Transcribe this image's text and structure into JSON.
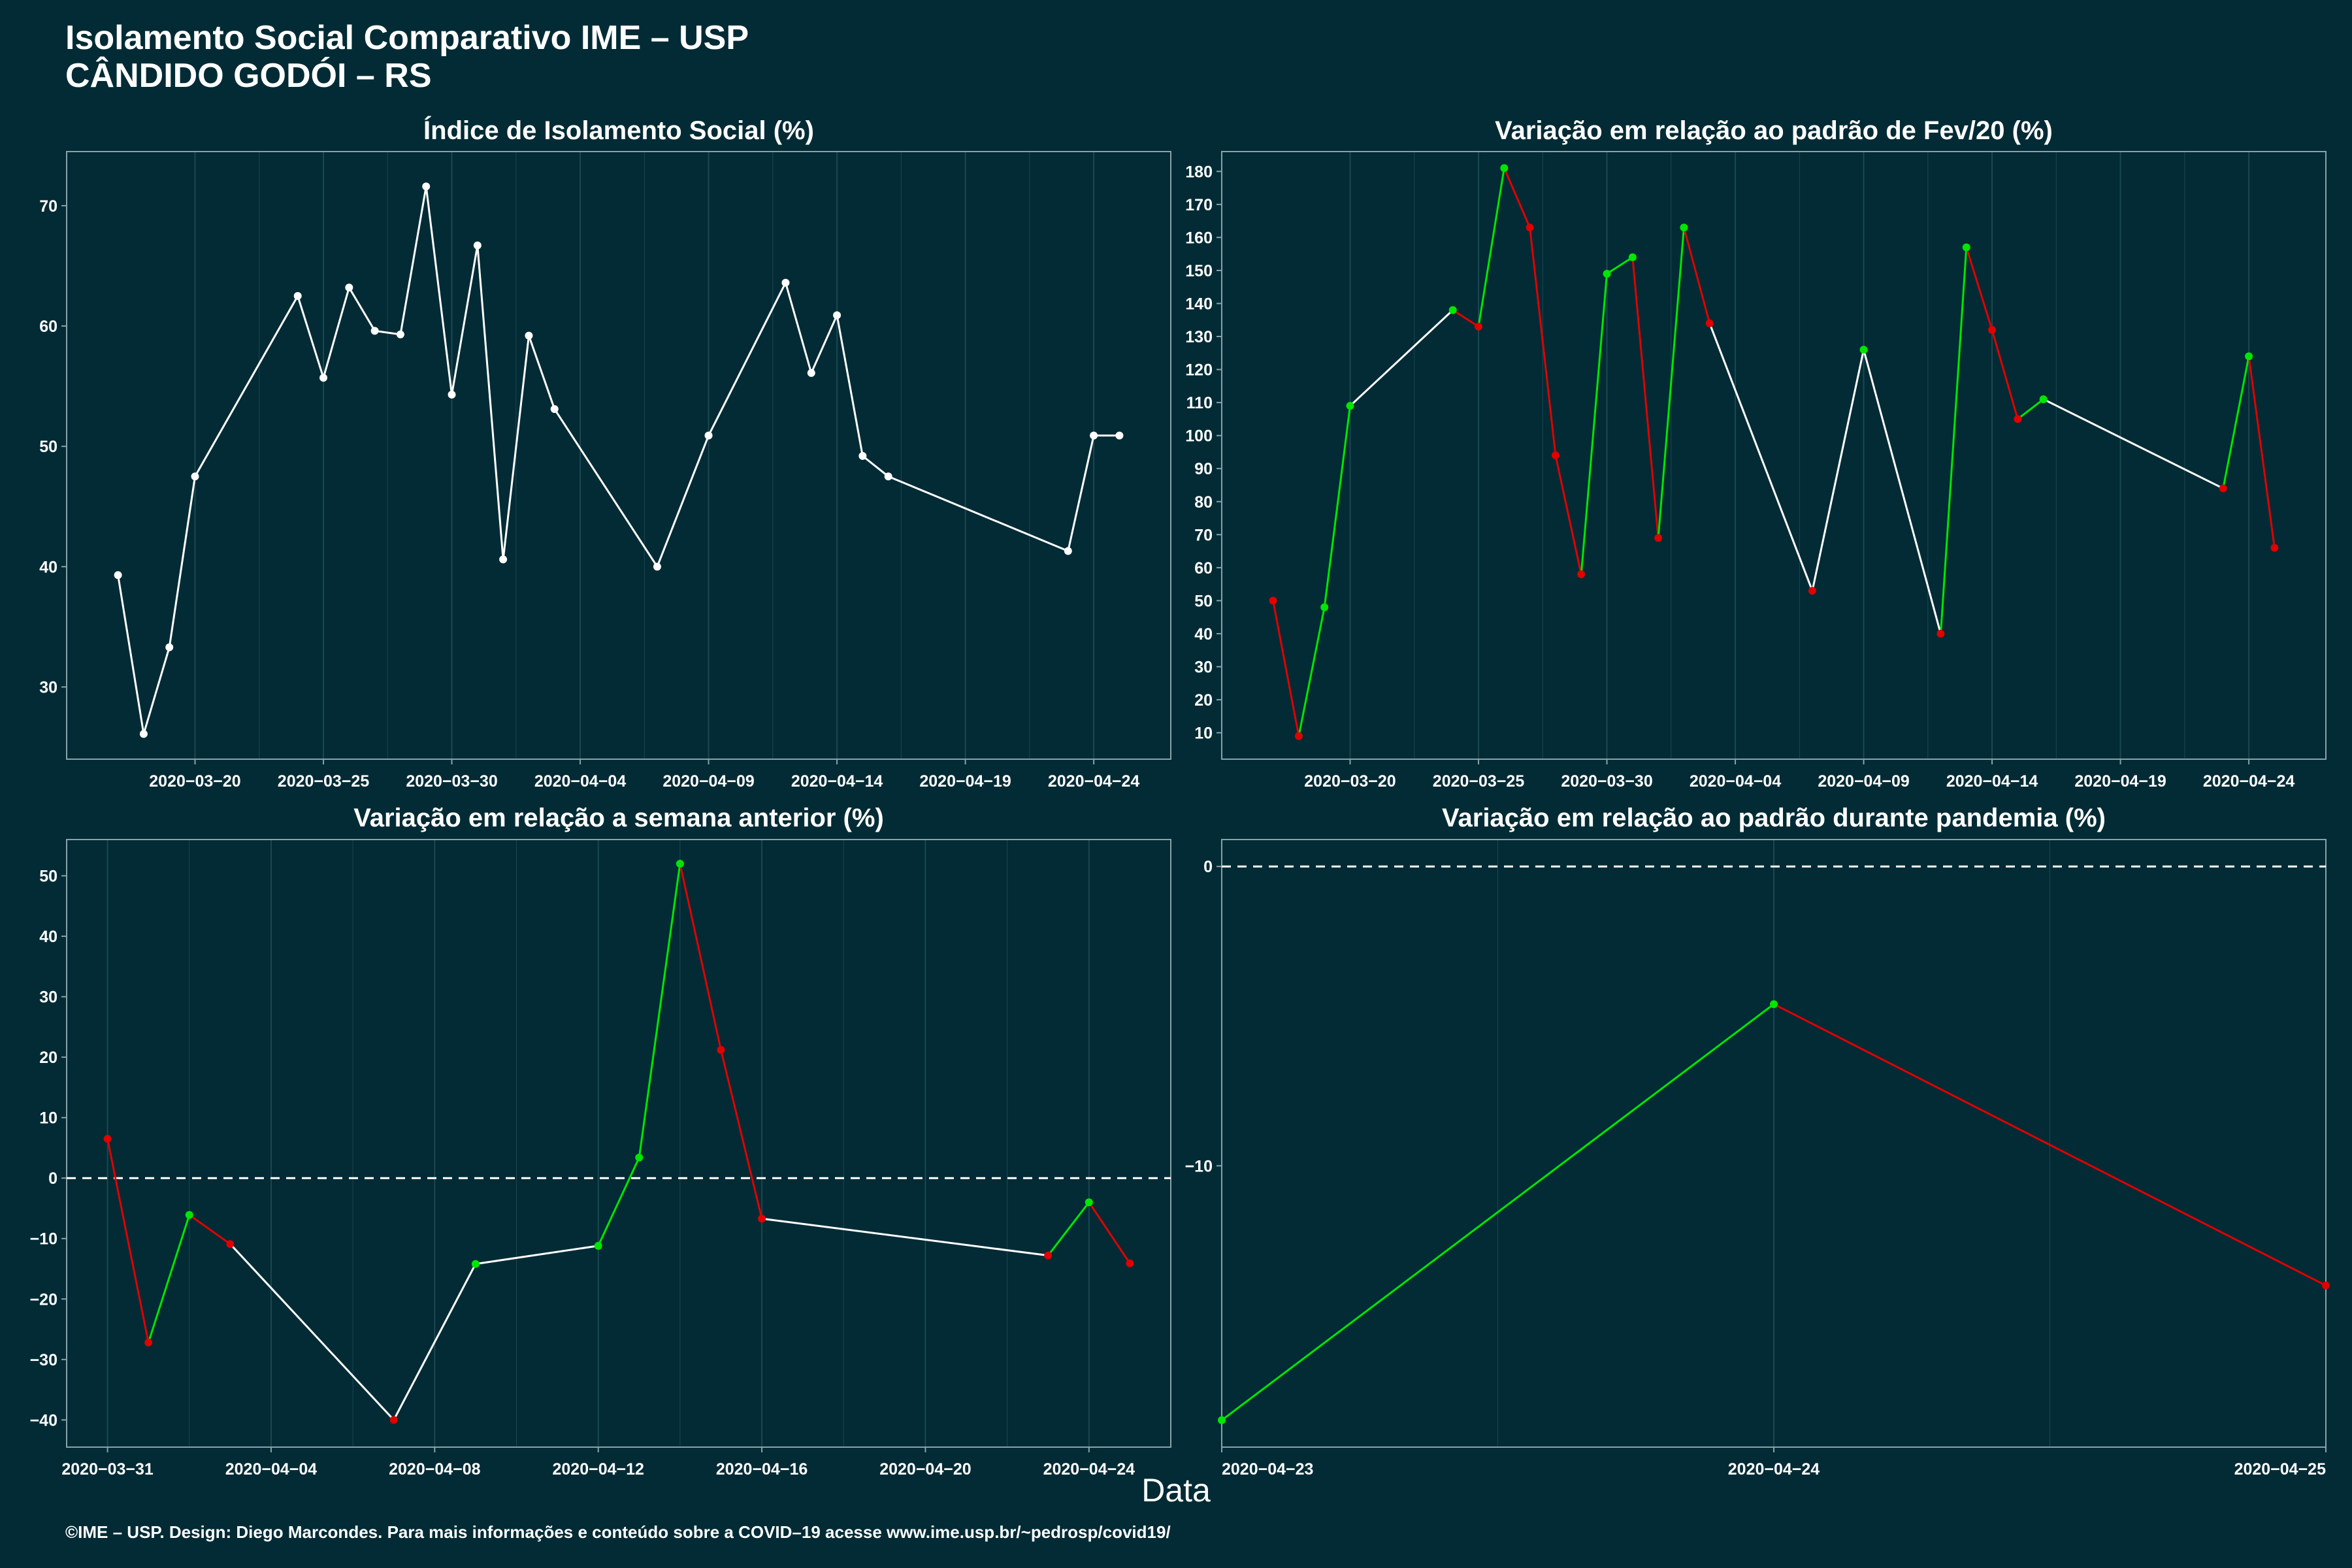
{
  "header": {
    "title_line1": "Isolamento Social Comparativo IME – USP",
    "title_line2": "CÂNDIDO GODÓI – RS"
  },
  "x_axis_caption": "Data",
  "credit": "©IME – USP. Design: Diego Marcondes. Para mais informações e conteúdo sobre a COVID–19 acesse www.ime.usp.br/~pedrosp/covid19/",
  "colors": {
    "background": "#022b35",
    "line": "#ffffff",
    "up": "#00e600",
    "down": "#e00000",
    "grid": "#1c4850"
  },
  "chart_data": [
    {
      "id": "isolamento",
      "title": "Índice de Isolamento Social (%)",
      "type": "line",
      "color_mode": "white",
      "xlim": [
        "2020-03-15",
        "2020-04-27"
      ],
      "ylim": [
        24,
        74.5
      ],
      "yticks": [
        30,
        40,
        50,
        60,
        70
      ],
      "xticks": [
        "2020-03-20",
        "2020-03-25",
        "2020-03-30",
        "2020-04-04",
        "2020-04-09",
        "2020-04-14",
        "2020-04-19",
        "2020-04-24"
      ],
      "x": [
        "2020-03-17",
        "2020-03-18",
        "2020-03-19",
        "2020-03-20",
        "2020-03-24",
        "2020-03-25",
        "2020-03-26",
        "2020-03-27",
        "2020-03-28",
        "2020-03-29",
        "2020-03-30",
        "2020-03-31",
        "2020-04-01",
        "2020-04-02",
        "2020-04-03",
        "2020-04-07",
        "2020-04-09",
        "2020-04-12",
        "2020-04-13",
        "2020-04-14",
        "2020-04-15",
        "2020-04-16",
        "2020-04-23",
        "2020-04-24",
        "2020-04-25"
      ],
      "y": [
        39.3,
        26.1,
        33.3,
        47.5,
        62.5,
        55.7,
        63.2,
        59.6,
        59.3,
        71.6,
        54.3,
        66.7,
        40.6,
        59.2,
        53.1,
        40.0,
        50.9,
        63.6,
        56.1,
        60.9,
        49.2,
        47.5,
        41.3,
        50.9,
        50.9
      ]
    },
    {
      "id": "fev20",
      "title": "Variação em relação ao padrão de Fev/20 (%)",
      "type": "line",
      "color_mode": "alternating",
      "xlim": [
        "2020-03-15",
        "2020-04-27"
      ],
      "ylim": [
        2,
        186
      ],
      "yticks": [
        10,
        20,
        30,
        40,
        50,
        60,
        70,
        80,
        90,
        100,
        110,
        120,
        130,
        140,
        150,
        160,
        170,
        180
      ],
      "xticks": [
        "2020-03-20",
        "2020-03-25",
        "2020-03-30",
        "2020-04-04",
        "2020-04-09",
        "2020-04-14",
        "2020-04-19",
        "2020-04-24"
      ],
      "x": [
        "2020-03-17",
        "2020-03-18",
        "2020-03-19",
        "2020-03-20",
        "2020-03-24",
        "2020-03-25",
        "2020-03-26",
        "2020-03-27",
        "2020-03-28",
        "2020-03-29",
        "2020-03-30",
        "2020-03-31",
        "2020-04-01",
        "2020-04-02",
        "2020-04-03",
        "2020-04-07",
        "2020-04-09",
        "2020-04-12",
        "2020-04-13",
        "2020-04-14",
        "2020-04-15",
        "2020-04-16",
        "2020-04-23",
        "2020-04-24",
        "2020-04-25"
      ],
      "y": [
        50,
        9,
        48,
        109,
        138,
        133,
        181,
        163,
        94,
        58,
        149,
        154,
        69,
        163,
        134,
        53,
        126,
        40,
        157,
        132,
        105,
        111,
        84,
        124,
        66
      ]
    },
    {
      "id": "semana",
      "title": "Variação em relação a semana anterior (%)",
      "type": "line",
      "color_mode": "alternating",
      "xlim": [
        "2020-03-30",
        "2020-04-26"
      ],
      "ylim": [
        -44.5,
        56
      ],
      "yticks": [
        -40,
        -30,
        -20,
        -10,
        0,
        10,
        20,
        30,
        40,
        50
      ],
      "xticks": [
        "2020-03-31",
        "2020-04-04",
        "2020-04-08",
        "2020-04-12",
        "2020-04-16",
        "2020-04-20",
        "2020-04-24"
      ],
      "reference_line": 0,
      "x": [
        "2020-03-31",
        "2020-04-01",
        "2020-04-02",
        "2020-04-03",
        "2020-04-07",
        "2020-04-09",
        "2020-04-12",
        "2020-04-13",
        "2020-04-14",
        "2020-04-15",
        "2020-04-16",
        "2020-04-23",
        "2020-04-24",
        "2020-04-25"
      ],
      "y": [
        6.5,
        -27.2,
        -6.1,
        -10.9,
        -40.0,
        -14.2,
        -11.2,
        3.4,
        52.0,
        21.2,
        -6.7,
        -12.8,
        -4.0,
        -14.1
      ]
    },
    {
      "id": "pandemia",
      "title": "Variação em relação ao padrão durante pandemia (%)",
      "type": "line",
      "color_mode": "alternating",
      "xlim": [
        "2020-04-23",
        "2020-04-25"
      ],
      "ylim": [
        -19.4,
        0.9
      ],
      "yticks": [
        -10,
        0
      ],
      "xticks": [
        "2020-04-23",
        "2020-04-24",
        "2020-04-25"
      ],
      "reference_line": 0,
      "x": [
        "2020-04-23",
        "2020-04-24",
        "2020-04-25"
      ],
      "y": [
        -18.5,
        -4.6,
        -14.0
      ]
    }
  ]
}
